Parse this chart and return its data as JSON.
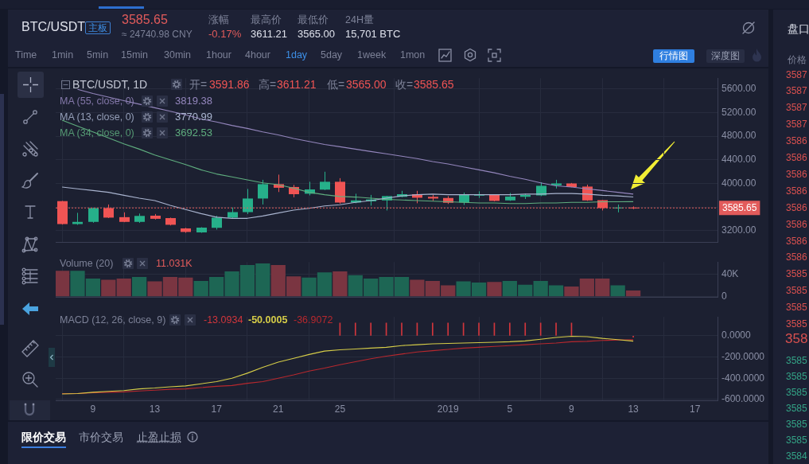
{
  "chart_data": [
    {
      "type": "candlestick",
      "title": "BTC/USDT, 1D",
      "x": [
        "2018-12-07",
        "2018-12-08",
        "2018-12-09",
        "2018-12-10",
        "2018-12-11",
        "2018-12-12",
        "2018-12-13",
        "2018-12-14",
        "2018-12-15",
        "2018-12-16",
        "2018-12-17",
        "2018-12-18",
        "2018-12-19",
        "2018-12-20",
        "2018-12-21",
        "2018-12-22",
        "2018-12-23",
        "2018-12-24",
        "2018-12-25",
        "2018-12-26",
        "2018-12-27",
        "2018-12-28",
        "2018-12-29",
        "2018-12-30",
        "2018-12-31",
        "2019-01-01",
        "2019-01-02",
        "2019-01-03",
        "2019-01-04",
        "2019-01-05",
        "2019-01-06",
        "2019-01-07",
        "2019-01-08",
        "2019-01-09",
        "2019-01-10",
        "2019-01-11",
        "2019-01-12",
        "2019-01-13"
      ],
      "ohlc": [
        [
          3701,
          3705,
          3305,
          3313
        ],
        [
          3313,
          3503,
          3300,
          3350
        ],
        [
          3350,
          3590,
          3335,
          3584
        ],
        [
          3584,
          3644,
          3415,
          3422
        ],
        [
          3430,
          3511,
          3345,
          3350
        ],
        [
          3350,
          3491,
          3333,
          3451
        ],
        [
          3455,
          3483,
          3390,
          3402
        ],
        [
          3414,
          3422,
          3290,
          3301
        ],
        [
          3240,
          3250,
          3165,
          3180
        ],
        [
          3172,
          3260,
          3165,
          3253
        ],
        [
          3250,
          3455,
          3220,
          3422
        ],
        [
          3422,
          3592,
          3415,
          3515
        ],
        [
          3515,
          3907,
          3483,
          3745
        ],
        [
          3745,
          4061,
          3644,
          3988
        ],
        [
          3988,
          4149,
          3855,
          3927
        ],
        [
          3940,
          3976,
          3766,
          3818
        ],
        [
          3826,
          4028,
          3798,
          3899
        ],
        [
          3895,
          4198,
          3887,
          4028
        ],
        [
          4028,
          4089,
          3657,
          3677
        ],
        [
          3677,
          3826,
          3665,
          3713
        ],
        [
          3697,
          3806,
          3624,
          3729
        ],
        [
          3713,
          3790,
          3543,
          3786
        ],
        [
          3774,
          3875,
          3766,
          3818
        ],
        [
          3818,
          3875,
          3665,
          3758
        ],
        [
          3774,
          3806,
          3705,
          3745
        ],
        [
          3754,
          3786,
          3653,
          3673
        ],
        [
          3677,
          3846,
          3636,
          3806
        ],
        [
          3794,
          3867,
          3754,
          3810
        ],
        [
          3806,
          3810,
          3697,
          3705
        ],
        [
          3713,
          3838,
          3705,
          3778
        ],
        [
          3774,
          3826,
          3737,
          3806
        ],
        [
          3798,
          4020,
          3786,
          3960
        ],
        [
          3968,
          4061,
          3915,
          4000
        ],
        [
          4000,
          4008,
          3935,
          3939
        ],
        [
          3947,
          3980,
          3705,
          3713
        ],
        [
          3717,
          3717,
          3543,
          3584
        ],
        [
          3584,
          3644,
          3511,
          3592
        ],
        [
          3591.86,
          3611.21,
          3565.0,
          3585.65
        ]
      ],
      "colors": [
        "#f05454",
        "#26b08a",
        "#26b08a",
        "#f05454",
        "#f05454",
        "#26b08a",
        "#f05454",
        "#f05454",
        "#f05454",
        "#26b08a",
        "#26b08a",
        "#26b08a",
        "#26b08a",
        "#26b08a",
        "#f05454",
        "#f05454",
        "#26b08a",
        "#26b08a",
        "#f05454",
        "#26b08a",
        "#26b08a",
        "#26b08a",
        "#26b08a",
        "#f05454",
        "#f05454",
        "#f05454",
        "#26b08a",
        "#26b08a",
        "#f05454",
        "#26b08a",
        "#26b08a",
        "#26b08a",
        "#26b08a",
        "#f05454",
        "#f05454",
        "#f05454",
        "#26b08a",
        "#f05454"
      ],
      "series": [
        {
          "type": "line",
          "name": "MA (55, close, 0)",
          "color": "#9486bd",
          "values": [
            null,
            5590,
            5520,
            5460,
            5400,
            5340,
            5280,
            5220,
            5160,
            5090,
            5040,
            4980,
            4930,
            4870,
            4820,
            4760,
            4710,
            4660,
            4620,
            4580,
            4540,
            4500,
            4460,
            4420,
            4370,
            4330,
            4280,
            4230,
            4180,
            4120,
            4070,
            4010,
            3960,
            3940,
            3910,
            3880,
            3850,
            3819.38
          ]
        },
        {
          "type": "line",
          "name": "MA (13, close, 0)",
          "color": "#a9b4cf",
          "values": [
            3940,
            3910,
            3880,
            3850,
            3800,
            3750,
            3710,
            3630,
            3560,
            3490,
            3430,
            3410,
            3410,
            3450,
            3500,
            3550,
            3580,
            3620,
            3640,
            3680,
            3710,
            3750,
            3790,
            3810,
            3820,
            3810,
            3810,
            3810,
            3810,
            3810,
            3820,
            3820,
            3830,
            3830,
            3820,
            3800,
            3790,
            3770.99
          ]
        },
        {
          "type": "line",
          "name": "MA (34, close, 0)",
          "color": "#5fae7f",
          "values": [
            5070,
            4970,
            4870,
            4770,
            4670,
            4580,
            4480,
            4400,
            4320,
            4230,
            4160,
            4110,
            4060,
            4010,
            3980,
            3920,
            3850,
            3810,
            3780,
            3770,
            3750,
            3730,
            3720,
            3710,
            3700,
            3690,
            3680,
            3670,
            3670,
            3660,
            3660,
            3670,
            3670,
            3680,
            3680,
            3690,
            3690,
            3692.53
          ]
        }
      ],
      "xlim": [
        "2018-12-06T14:00",
        "2019-01-18T11:00"
      ],
      "xticks": [
        {
          "value": "2018-12-09",
          "label": null
        },
        {
          "value": "2018-12-13",
          "label": null
        },
        {
          "value": "2018-12-17",
          "label": null
        },
        {
          "value": "2018-12-21",
          "label": null
        },
        {
          "value": "2018-12-25",
          "label": null
        },
        {
          "value": "2019-01-01",
          "label": null
        },
        {
          "value": "2019-01-05",
          "label": null
        },
        {
          "value": "2019-01-09",
          "label": null
        },
        {
          "value": "2019-01-13",
          "label": null
        },
        {
          "value": "2019-01-17",
          "label": null
        }
      ],
      "ylim": [
        3000,
        5780
      ],
      "yticks": [
        {
          "value": 3200,
          "label": "3200.00"
        },
        {
          "value": 3600,
          "label": null
        },
        {
          "value": 4000,
          "label": "4000.00"
        },
        {
          "value": 4400,
          "label": "4400.00"
        },
        {
          "value": 4800,
          "label": "4800.00"
        },
        {
          "value": 5200,
          "label": "5200.00"
        },
        {
          "value": 5600,
          "label": "5600.00"
        }
      ],
      "ref_lines": [
        {
          "axis": "y",
          "value": 3585.65,
          "label": "3585.65",
          "color": "#e25b5b",
          "line_style": "dotted"
        }
      ],
      "grid": true,
      "legend": "top left",
      "tick_labels": "y",
      "annotations": [
        "BTC/USDT",
        "主板",
        "3585.65",
        "≈ 24740.98 CNY",
        "涨幅",
        "-0.17%",
        "最高价",
        "3611.21",
        "最低价",
        "3565.00",
        "24H量",
        "15,701 BTC",
        "Time",
        "1min",
        "5min",
        "15min",
        "30min",
        "1hour",
        "4hour",
        "1day",
        "5day",
        "1week",
        "1mon",
        "行情图",
        "深度图",
        "开=",
        "3591.86",
        "高=",
        "3611.21",
        "低=",
        "3565.00",
        "收=",
        "3585.65",
        "3819.38",
        "3770.99",
        "3692.53",
        "盘口",
        "价格",
        "3587",
        "3587",
        "3587",
        "3587",
        "3586",
        "3586",
        "3586",
        "3586",
        "3586",
        "3586",
        "3586",
        "3586",
        "3585",
        "3585",
        "3585",
        "3585",
        "358",
        "3585",
        "3585",
        "3585",
        "3585",
        "3585",
        "3585",
        "3584",
        "限价交易",
        "市价交易",
        "止盈止损"
      ]
    },
    {
      "type": "bar",
      "title": "Volume (20)",
      "x": [
        "2018-12-07",
        "2018-12-08",
        "2018-12-09",
        "2018-12-10",
        "2018-12-11",
        "2018-12-12",
        "2018-12-13",
        "2018-12-14",
        "2018-12-15",
        "2018-12-16",
        "2018-12-17",
        "2018-12-18",
        "2018-12-19",
        "2018-12-20",
        "2018-12-21",
        "2018-12-22",
        "2018-12-23",
        "2018-12-24",
        "2018-12-25",
        "2018-12-26",
        "2018-12-27",
        "2018-12-28",
        "2018-12-29",
        "2018-12-30",
        "2018-12-31",
        "2019-01-01",
        "2019-01-02",
        "2019-01-03",
        "2019-01-04",
        "2019-01-05",
        "2019-01-06",
        "2019-01-07",
        "2019-01-08",
        "2019-01-09",
        "2019-01-10",
        "2019-01-11",
        "2019-01-12",
        "2019-01-13"
      ],
      "values": [
        46000,
        46000,
        32000,
        30000,
        32000,
        35000,
        27000,
        35000,
        34000,
        28000,
        35000,
        45000,
        56000,
        59000,
        56000,
        36000,
        34000,
        43000,
        45000,
        38000,
        32000,
        35000,
        35000,
        30000,
        28000,
        20000,
        27000,
        25000,
        26000,
        28000,
        21000,
        28000,
        20000,
        18000,
        32000,
        32000,
        20000,
        11031
      ],
      "colors": [
        "#7a3541",
        "#1d6654",
        "#1d6654",
        "#7a3541",
        "#7a3541",
        "#1d6654",
        "#7a3541",
        "#7a3541",
        "#7a3541",
        "#1d6654",
        "#1d6654",
        "#1d6654",
        "#1d6654",
        "#1d6654",
        "#7a3541",
        "#7a3541",
        "#1d6654",
        "#1d6654",
        "#7a3541",
        "#1d6654",
        "#1d6654",
        "#1d6654",
        "#1d6654",
        "#7a3541",
        "#7a3541",
        "#7a3541",
        "#1d6654",
        "#1d6654",
        "#7a3541",
        "#1d6654",
        "#1d6654",
        "#1d6654",
        "#1d6654",
        "#7a3541",
        "#7a3541",
        "#7a3541",
        "#1d6654",
        "#7a3541"
      ],
      "xlim": [
        "2018-12-06T14:00",
        "2019-01-18T11:00"
      ],
      "xticks": [
        {
          "value": "2018-12-09",
          "label": null
        },
        {
          "value": "2018-12-13",
          "label": null
        },
        {
          "value": "2018-12-17",
          "label": null
        },
        {
          "value": "2018-12-21",
          "label": null
        },
        {
          "value": "2018-12-25",
          "label": null
        },
        {
          "value": "2019-01-01",
          "label": null
        },
        {
          "value": "2019-01-05",
          "label": null
        },
        {
          "value": "2019-01-09",
          "label": null
        },
        {
          "value": "2019-01-13",
          "label": null
        },
        {
          "value": "2019-01-17",
          "label": null
        }
      ],
      "ylim": [
        -1500,
        61500
      ],
      "yticks": [
        0,
        {
          "value": 40000,
          "label": "40K"
        }
      ],
      "grid": true,
      "tick_labels": "y",
      "annotations": [
        "11.031K"
      ]
    },
    {
      "type": "line",
      "title": "MACD (12, 26, close, 9)",
      "x": [
        "2018-12-07",
        "2018-12-08",
        "2018-12-09",
        "2018-12-10",
        "2018-12-11",
        "2018-12-12",
        "2018-12-13",
        "2018-12-14",
        "2018-12-15",
        "2018-12-16",
        "2018-12-17",
        "2018-12-18",
        "2018-12-19",
        "2018-12-20",
        "2018-12-21",
        "2018-12-22",
        "2018-12-23",
        "2018-12-24",
        "2018-12-25",
        "2018-12-26",
        "2018-12-27",
        "2018-12-28",
        "2018-12-29",
        "2018-12-30",
        "2018-12-31",
        "2019-01-01",
        "2019-01-02",
        "2019-01-03",
        "2019-01-04",
        "2019-01-05",
        "2019-01-06",
        "2019-01-07",
        "2019-01-08",
        "2019-01-09",
        "2019-01-10",
        "2019-01-11",
        "2019-01-12",
        "2019-01-13"
      ],
      "series": [
        {
          "type": "bar",
          "color": "#d2363c",
          "values": [
            null,
            null,
            null,
            null,
            null,
            null,
            null,
            null,
            null,
            null,
            null,
            null,
            null,
            null,
            null,
            null,
            null,
            null,
            120,
            120,
            120,
            120,
            120,
            120,
            120,
            120,
            120,
            120,
            120,
            120,
            120,
            120,
            120,
            120,
            null,
            null,
            null,
            -13.0934
          ]
        },
        {
          "color": "#d6cd48",
          "values": [
            -548,
            -544,
            -532,
            -524,
            -516,
            -500,
            -492,
            -480,
            -472,
            -452,
            -432,
            -400,
            -352,
            -296,
            -248,
            -212,
            -176,
            -144,
            -132,
            -124,
            -116,
            -108,
            -92,
            -84,
            -76,
            -72,
            -68,
            -64,
            -60,
            -56,
            -48,
            -32,
            -16,
            -4,
            -8,
            -24,
            -36,
            -50.0005
          ]
        },
        {
          "color": "#b8282e",
          "values": [
            -544,
            -544,
            -536,
            -532,
            -528,
            -520,
            -512,
            -504,
            -500,
            -488,
            -476,
            -468,
            -448,
            -432,
            -400,
            -368,
            -332,
            -304,
            -272,
            -244,
            -216,
            -192,
            -172,
            -152,
            -140,
            -128,
            -116,
            -108,
            -100,
            -92,
            -84,
            -76,
            -68,
            -56,
            -52,
            -44,
            -40,
            -36.9072
          ]
        }
      ],
      "xlim": [
        "2018-12-06T14:00",
        "2019-01-18T11:00"
      ],
      "xticks": [
        {
          "value": "2018-12-09",
          "label": "9"
        },
        {
          "value": "2018-12-13",
          "label": "13"
        },
        {
          "value": "2018-12-17",
          "label": "17"
        },
        {
          "value": "2018-12-21",
          "label": "21"
        },
        {
          "value": "2018-12-25",
          "label": "25"
        },
        {
          "value": "2019-01-01",
          "label": "2019"
        },
        {
          "value": "2019-01-05",
          "label": "5"
        },
        {
          "value": "2019-01-09",
          "label": "9"
        },
        {
          "value": "2019-01-13",
          "label": "13"
        },
        {
          "value": "2019-01-17",
          "label": "17"
        }
      ],
      "ylim": [
        -608,
        178
      ],
      "yticks": [
        {
          "value": -600,
          "label": "-600.0000"
        },
        {
          "value": -400,
          "label": "-400.0000"
        },
        {
          "value": -200,
          "label": "-200.0000"
        },
        {
          "value": 0,
          "label": "0.0000"
        }
      ],
      "grid": true,
      "annotations": [
        "-13.0934",
        "-50.0005",
        "-36.9072"
      ]
    }
  ]
}
